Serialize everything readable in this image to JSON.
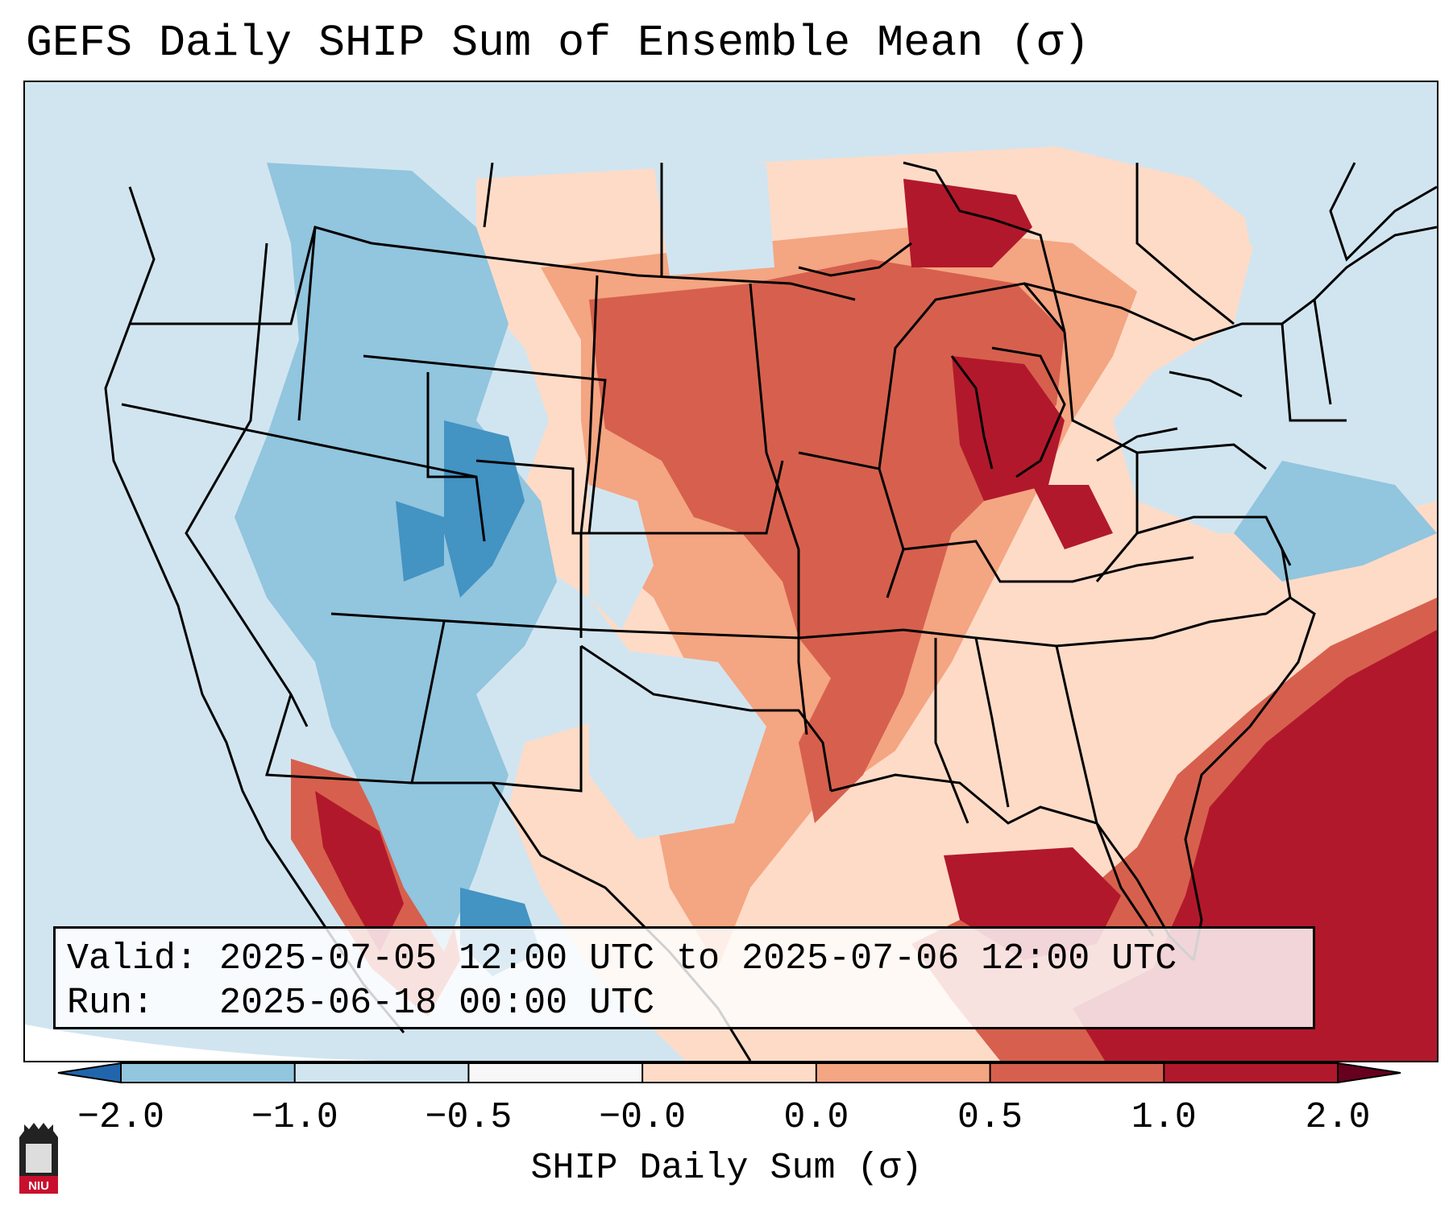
{
  "title": "GEFS Daily SHIP Sum of Ensemble Mean (σ)",
  "info": {
    "valid_label": "Valid:",
    "valid_value": "2025-07-05 12:00 UTC to 2025-07-06 12:00 UTC",
    "run_label": "Run:",
    "run_value": "2025-06-18 00:00 UTC"
  },
  "colorbar": {
    "label": "SHIP Daily Sum (σ)",
    "ticks": [
      "−2.0",
      "−1.0",
      "−0.5",
      "−0.0",
      "0.0",
      "0.5",
      "1.0",
      "2.0"
    ],
    "colors": [
      "#4393c3",
      "#92c5de",
      "#d1e5f0",
      "#f7f7f7",
      "#fddbc7",
      "#f4a582",
      "#d6604d",
      "#b2182b"
    ],
    "under_color": "#2166ac",
    "over_color": "#67001f"
  },
  "logo": {
    "text": "NIU",
    "color": "#c8102e"
  }
}
